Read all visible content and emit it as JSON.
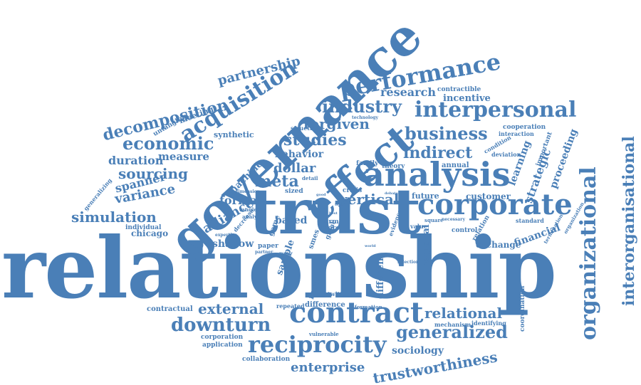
{
  "cloud": {
    "color": "#4a7fb7",
    "words": {
      "relationship": "relationship",
      "governance": "governance",
      "trust": "trust",
      "effect": "effect",
      "analysis": "analysis",
      "corporate": "corporate",
      "contract": "contract",
      "reciprocity": "reciprocity",
      "performance": "performance",
      "interpersonal": "interpersonal",
      "acquisition": "acquisition",
      "organizational": "organizational",
      "interorganisational": "interorganisational",
      "decomposition": "decomposition",
      "economic": "economic",
      "industry": "industry",
      "business": "business",
      "indirect": "indirect",
      "studies": "studies",
      "forgiven": "forgiven",
      "sourcing": "sourcing",
      "simulation": "simulation",
      "variance": "variance",
      "spanner": "spanner",
      "duration": "duration",
      "measure": "measure",
      "partnership": "partnership",
      "research": "research",
      "meta": "meta",
      "dollar": "dollar",
      "behavior": "behavior",
      "vertical": "vertical",
      "based": "based",
      "formal": "formal",
      "alliance": "alliance",
      "shadow": "shadow",
      "external": "external",
      "downturn": "downturn",
      "generalized": "generalized",
      "relational": "relational",
      "trustworthiness": "trustworthiness",
      "enterprise": "enterprise",
      "sociology": "sociology",
      "financial": "financial",
      "exchange": "exchange",
      "strategic": "strategic",
      "learning": "learning",
      "proceeding": "proceeding",
      "regional": "regional",
      "different": "different",
      "sample": "sample",
      "increase": "increase",
      "customer": "customer",
      "future": "future",
      "chicago": "chicago",
      "individual": "individual",
      "machine": "machine",
      "synthetic": "synthetic",
      "meeting": "meeting",
      "untangling": "untangling",
      "incentive": "incentive",
      "contractible": "contractible",
      "cooperation": "cooperation",
      "interaction": "interaction",
      "condition": "condition",
      "deviation": "deviation",
      "important": "important",
      "annual": "annual",
      "family": "family",
      "theory": "theory",
      "structure": "structure",
      "crisis": "crisis",
      "firm": "firm",
      "more": "more",
      "paper": "paper",
      "game": "game",
      "smes": "smes",
      "great": "great",
      "difference": "difference",
      "repeated": "repeated",
      "information": "information",
      "mechanism": "mechanism",
      "identifying": "identifying",
      "coordination": "coordination",
      "contractual": "contractual",
      "corporation": "corporation",
      "application": "application",
      "collaboration": "collaboration",
      "vulnerable": "vulnerable",
      "twitter": "twitter",
      "generalizing": "generalizing",
      "control": "control",
      "standard": "standard",
      "termination": "termination",
      "organization": "organization",
      "relation": "relation",
      "square": "square",
      "necessary": "necessary",
      "value": "value",
      "evidence": "evidence",
      "selection": "selection",
      "decrease": "decrease",
      "expertise": "expertise",
      "tangled": "tangled",
      "analyze": "analyze",
      "dimension": "dimension",
      "sized": "sized",
      "detail": "detail",
      "technology": "technology",
      "partner": "partner",
      "matter": "matter",
      "specific": "specific",
      "debate": "debate",
      "world": "world",
      "test": "test",
      "good": "good",
      "best": "best"
    }
  }
}
